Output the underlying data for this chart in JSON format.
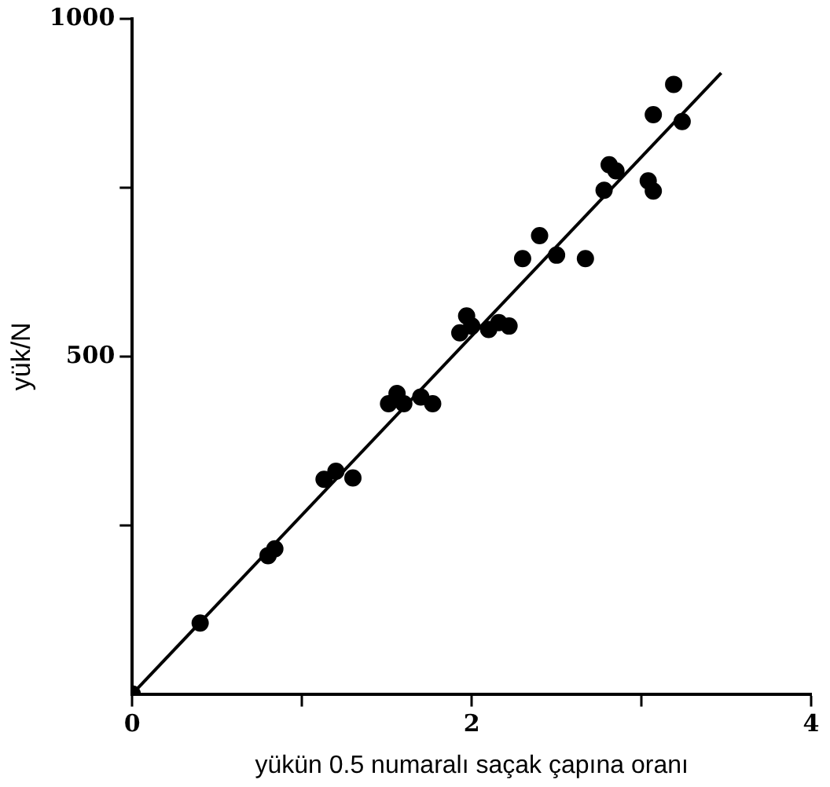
{
  "chart_data": {
    "type": "scatter",
    "xlabel": "yükün 0.5 numaralı saçak çapına oranı",
    "ylabel": "yük/N",
    "xlim": [
      0,
      4
    ],
    "ylim": [
      0,
      1000
    ],
    "xticks": [
      0,
      {
        "value": 1,
        "label": null
      },
      2,
      {
        "value": 3,
        "label": null
      },
      4
    ],
    "yticks": [
      {
        "value": 250,
        "label": null
      },
      500,
      {
        "value": 750,
        "label": null
      },
      1000
    ],
    "grid": false,
    "legend": false,
    "marker": "circle",
    "series": [
      {
        "color": "#000000",
        "x": [
          0,
          0.4,
          0.8,
          0.84,
          1.13,
          1.2,
          1.3,
          1.51,
          1.56,
          1.6,
          1.7,
          1.77,
          1.93,
          1.97,
          2.0,
          2.1,
          2.16,
          2.22,
          2.3,
          2.4,
          2.5,
          2.67,
          2.81,
          2.78,
          2.85,
          3.04,
          3.07,
          3.07,
          3.19,
          3.24
        ],
        "values": [
          0,
          105,
          205,
          215,
          318,
          330,
          320,
          430,
          445,
          430,
          440,
          430,
          535,
          560,
          545,
          540,
          550,
          545,
          645,
          679,
          650,
          645,
          784,
          746,
          775,
          760,
          745,
          858,
          903,
          848
        ]
      },
      {
        "type": "line",
        "color": "#000000",
        "marker": "none",
        "x": [
          0,
          3.47
        ],
        "values": [
          0,
          920
        ]
      }
    ]
  }
}
